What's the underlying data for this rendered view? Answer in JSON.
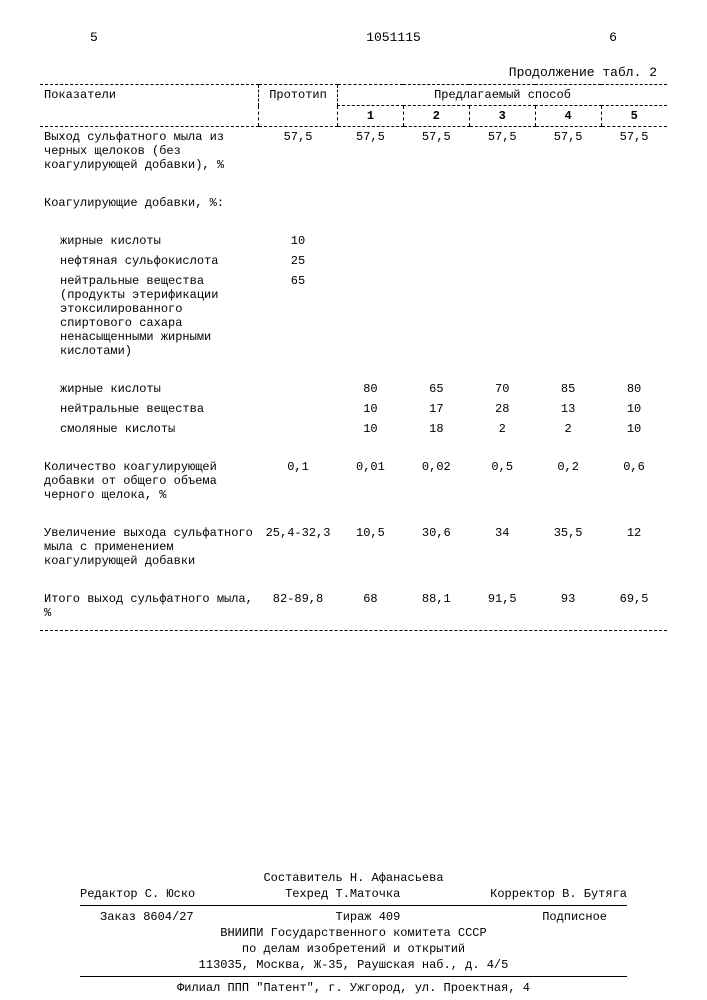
{
  "header": {
    "left_mark": "5",
    "doc_number": "1051115",
    "right_mark": "6"
  },
  "table": {
    "caption": "Продолжение табл. 2",
    "col_headers": {
      "indicators": "Показатели",
      "prototype": "Прототип",
      "method_group": "Предлагаемый способ",
      "method_cols": [
        "1",
        "2",
        "3",
        "4",
        "5"
      ]
    },
    "rows": [
      {
        "label": "Выход сульфатного мыла из черных щелоков (без коагулирующей добавки), %",
        "indent": 0,
        "vals": [
          "57,5",
          "57,5",
          "57,5",
          "57,5",
          "57,5",
          "57,5"
        ]
      },
      {
        "label": "Коагулирующие добавки, %:",
        "indent": 0,
        "vals": [
          "",
          "",
          "",
          "",
          "",
          ""
        ]
      },
      {
        "label": "жирные кислоты",
        "indent": 1,
        "vals": [
          "10",
          "",
          "",
          "",
          "",
          ""
        ]
      },
      {
        "label": "нефтяная сульфокислота",
        "indent": 1,
        "vals": [
          "25",
          "",
          "",
          "",
          "",
          ""
        ]
      },
      {
        "label": "нейтральные вещества (продукты этерификации этоксилированного спиртового сахара ненасыщенными жирными кислотами)",
        "indent": 1,
        "vals": [
          "65",
          "",
          "",
          "",
          "",
          ""
        ]
      },
      {
        "label": "жирные кислоты",
        "indent": 1,
        "vals": [
          "",
          "80",
          "65",
          "70",
          "85",
          "80"
        ]
      },
      {
        "label": "нейтральные вещества",
        "indent": 1,
        "vals": [
          "",
          "10",
          "17",
          "28",
          "13",
          "10"
        ]
      },
      {
        "label": "смоляные кислоты",
        "indent": 1,
        "vals": [
          "",
          "10",
          "18",
          "2",
          "2",
          "10"
        ]
      },
      {
        "label": "Количество коагулирующей добавки от общего объема черного щелока, %",
        "indent": 0,
        "vals": [
          "0,1",
          "0,01",
          "0,02",
          "0,5",
          "0,2",
          "0,6"
        ]
      },
      {
        "label": "Увеличение выхода сульфатного мыла с применением коагулирующей добавки",
        "indent": 0,
        "vals": [
          "25,4-32,3",
          "10,5",
          "30,6",
          "34",
          "35,5",
          "12"
        ]
      },
      {
        "label": "Итого выход сульфатного мыла, %",
        "indent": 0,
        "vals": [
          "82-89,8",
          "68",
          "88,1",
          "91,5",
          "93",
          "69,5"
        ]
      }
    ]
  },
  "footer": {
    "compiler": "Составитель Н. Афанасьева",
    "editor": "Редактор С. Юско",
    "techred": "Техред Т.Маточка",
    "corrector": "Корректор В. Бутяга",
    "order": "Заказ 8604/27",
    "tirage": "Тираж 409",
    "signed": "Подписное",
    "org1": "ВНИИПИ Государственного комитета СССР",
    "org2": "по делам изобретений и открытий",
    "address": "113035, Москва, Ж-35, Раушская наб., д. 4/5",
    "branch": "Филиал ППП \"Патент\", г. Ужгород, ул. Проектная, 4"
  }
}
